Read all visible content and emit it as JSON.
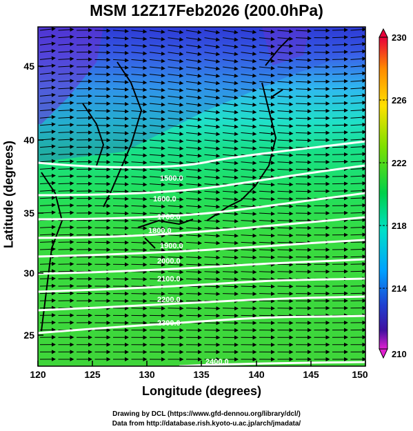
{
  "title": "MSM 12Z17Feb2026 (200.0hPa)",
  "xlabel": "Longitude (degrees)",
  "ylabel": "Latitude  (degrees)",
  "credits": {
    "line1": "Drawing by DCL (https://www.gfd-dennou.org/library/dcl/)",
    "line2": "Data from http://database.rish.kyoto-u.ac.jp/arch/jmadata/"
  },
  "x_ticks": [
    "120",
    "125",
    "130",
    "135",
    "140",
    "145",
    "150"
  ],
  "y_ticks": [
    "25",
    "30",
    "35",
    "40",
    "45"
  ],
  "colorbar": {
    "labels": [
      "230",
      "226",
      "222",
      "218",
      "214",
      "210"
    ],
    "colors": [
      "#e8003a",
      "#ff8a00",
      "#ffe000",
      "#7ee000",
      "#00d04a",
      "#00e0c8",
      "#00a0ff",
      "#2040d0",
      "#4010a0",
      "#e020d0"
    ]
  },
  "contour_labels": [
    "1500.0",
    "1600.0",
    "1700.0",
    "1800.0",
    "1900.0",
    "2000.0",
    "2100.0",
    "2200.0",
    "2300.0",
    "2400.0"
  ],
  "map": {
    "type": "wind-vectors-and-temperature-map",
    "lon_range": [
      120,
      150
    ],
    "lat_range": [
      22.5,
      48
    ],
    "field": "temperature",
    "field_range": [
      210,
      230
    ],
    "vectors": "westerly wind arrows",
    "contours": "geopotential height"
  }
}
